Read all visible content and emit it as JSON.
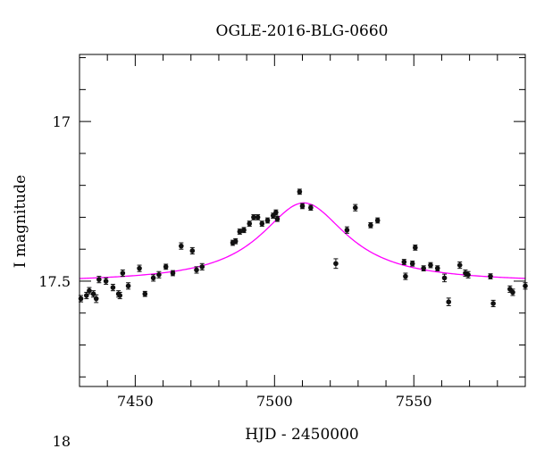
{
  "chart_data": {
    "type": "scatter",
    "title": "OGLE-2016-BLG-0660",
    "xlabel": "HJD - 2450000",
    "ylabel": "I magnitude",
    "xlim": [
      7430,
      7590
    ],
    "ylim": [
      17.83,
      16.79
    ],
    "y_inverted": true,
    "x_ticks": [
      7450,
      7500,
      7550
    ],
    "y_ticks": [
      17,
      17.5,
      18
    ],
    "colors": {
      "points": "#111111",
      "model": "#ff00ff",
      "axes": "#000000"
    },
    "series": [
      {
        "type": "scatter_errorbars",
        "points": [
          {
            "x": 7430.5,
            "y": 17.555,
            "e": 0.01
          },
          {
            "x": 7432.5,
            "y": 17.545,
            "e": 0.01
          },
          {
            "x": 7433.5,
            "y": 17.53,
            "e": 0.01
          },
          {
            "x": 7435,
            "y": 17.54,
            "e": 0.01
          },
          {
            "x": 7436,
            "y": 17.555,
            "e": 0.012
          },
          {
            "x": 7437,
            "y": 17.495,
            "e": 0.01
          },
          {
            "x": 7439.5,
            "y": 17.5,
            "e": 0.01
          },
          {
            "x": 7442,
            "y": 17.52,
            "e": 0.01
          },
          {
            "x": 7444,
            "y": 17.54,
            "e": 0.01
          },
          {
            "x": 7444.5,
            "y": 17.545,
            "e": 0.01
          },
          {
            "x": 7445.5,
            "y": 17.475,
            "e": 0.01
          },
          {
            "x": 7447.5,
            "y": 17.515,
            "e": 0.01
          },
          {
            "x": 7451.5,
            "y": 17.46,
            "e": 0.01
          },
          {
            "x": 7453.5,
            "y": 17.54,
            "e": 0.008
          },
          {
            "x": 7456.5,
            "y": 17.49,
            "e": 0.01
          },
          {
            "x": 7458.5,
            "y": 17.48,
            "e": 0.01
          },
          {
            "x": 7461,
            "y": 17.455,
            "e": 0.008
          },
          {
            "x": 7463.5,
            "y": 17.475,
            "e": 0.008
          },
          {
            "x": 7466.5,
            "y": 17.39,
            "e": 0.01
          },
          {
            "x": 7470.5,
            "y": 17.405,
            "e": 0.01
          },
          {
            "x": 7472,
            "y": 17.465,
            "e": 0.01
          },
          {
            "x": 7474,
            "y": 17.455,
            "e": 0.01
          },
          {
            "x": 7485,
            "y": 17.38,
            "e": 0.008
          },
          {
            "x": 7486,
            "y": 17.375,
            "e": 0.008
          },
          {
            "x": 7487.5,
            "y": 17.345,
            "e": 0.008
          },
          {
            "x": 7489,
            "y": 17.34,
            "e": 0.008
          },
          {
            "x": 7491,
            "y": 17.32,
            "e": 0.008
          },
          {
            "x": 7492.5,
            "y": 17.3,
            "e": 0.008
          },
          {
            "x": 7494,
            "y": 17.3,
            "e": 0.008
          },
          {
            "x": 7495.5,
            "y": 17.32,
            "e": 0.008
          },
          {
            "x": 7497.5,
            "y": 17.31,
            "e": 0.008
          },
          {
            "x": 7499.5,
            "y": 17.295,
            "e": 0.008
          },
          {
            "x": 7500.5,
            "y": 17.285,
            "e": 0.008
          },
          {
            "x": 7501,
            "y": 17.305,
            "e": 0.008
          },
          {
            "x": 7509,
            "y": 17.22,
            "e": 0.008
          },
          {
            "x": 7510,
            "y": 17.265,
            "e": 0.008
          },
          {
            "x": 7513,
            "y": 17.27,
            "e": 0.008
          },
          {
            "x": 7522,
            "y": 17.445,
            "e": 0.015
          },
          {
            "x": 7526,
            "y": 17.34,
            "e": 0.01
          },
          {
            "x": 7529,
            "y": 17.27,
            "e": 0.01
          },
          {
            "x": 7534.5,
            "y": 17.325,
            "e": 0.008
          },
          {
            "x": 7537,
            "y": 17.31,
            "e": 0.008
          },
          {
            "x": 7546.5,
            "y": 17.44,
            "e": 0.008
          },
          {
            "x": 7547,
            "y": 17.485,
            "e": 0.01
          },
          {
            "x": 7549.5,
            "y": 17.445,
            "e": 0.008
          },
          {
            "x": 7550.5,
            "y": 17.395,
            "e": 0.008
          },
          {
            "x": 7553.5,
            "y": 17.46,
            "e": 0.008
          },
          {
            "x": 7556,
            "y": 17.45,
            "e": 0.008
          },
          {
            "x": 7558.5,
            "y": 17.46,
            "e": 0.008
          },
          {
            "x": 7561,
            "y": 17.49,
            "e": 0.012
          },
          {
            "x": 7562.5,
            "y": 17.565,
            "e": 0.012
          },
          {
            "x": 7566.5,
            "y": 17.45,
            "e": 0.01
          },
          {
            "x": 7568.5,
            "y": 17.475,
            "e": 0.01
          },
          {
            "x": 7569.5,
            "y": 17.48,
            "e": 0.01
          },
          {
            "x": 7577.5,
            "y": 17.485,
            "e": 0.008
          },
          {
            "x": 7578.5,
            "y": 17.57,
            "e": 0.01
          },
          {
            "x": 7584.5,
            "y": 17.525,
            "e": 0.01
          },
          {
            "x": 7585.5,
            "y": 17.535,
            "e": 0.01
          },
          {
            "x": 7590,
            "y": 17.515,
            "e": 0.01
          }
        ]
      },
      {
        "type": "line",
        "model": {
          "t0": 7510.5,
          "fwhm_scale_days": 19,
          "baseline": 17.505,
          "peak": 17.255
        }
      }
    ]
  }
}
